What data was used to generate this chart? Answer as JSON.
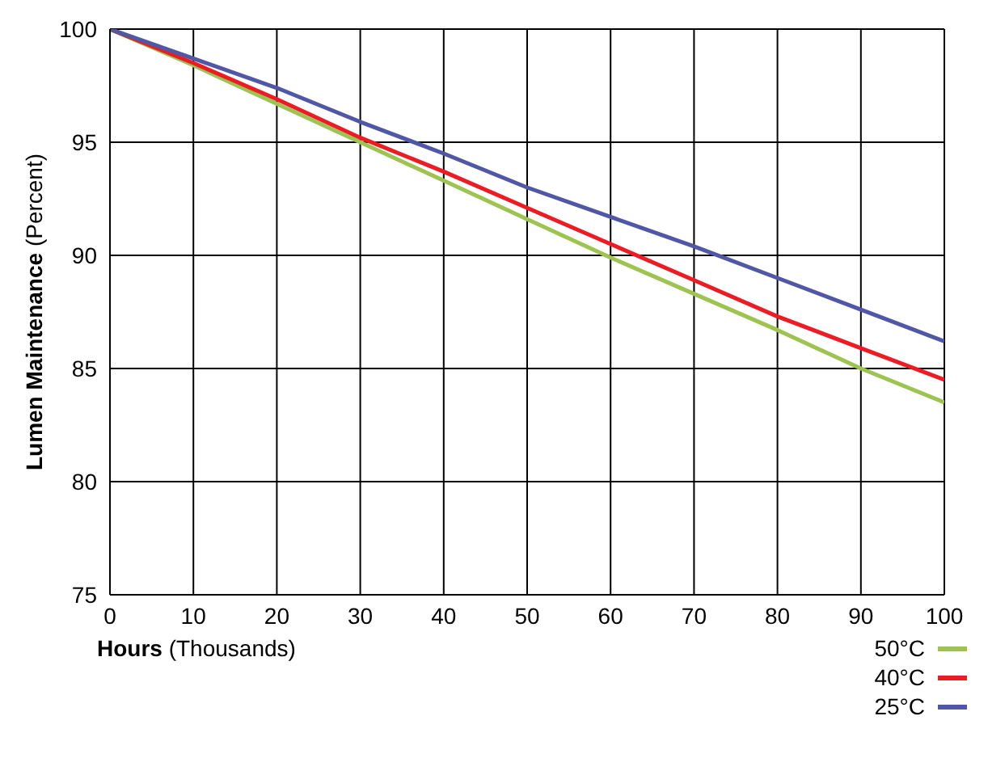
{
  "chart_data": {
    "type": "line",
    "xlabel": "Hours (Thousands)",
    "ylabel": "Lumen Maintenance (Percent)",
    "x": [
      0,
      10,
      20,
      30,
      40,
      50,
      60,
      70,
      80,
      90,
      100
    ],
    "series": [
      {
        "name": "50°C",
        "color": "#9dc350",
        "values": [
          100,
          98.4,
          96.7,
          95.0,
          93.3,
          91.6,
          89.9,
          88.3,
          86.7,
          85.0,
          83.5
        ]
      },
      {
        "name": "40°C",
        "color": "#ed1c24",
        "values": [
          100,
          98.5,
          96.9,
          95.2,
          93.7,
          92.1,
          90.5,
          88.9,
          87.3,
          85.9,
          84.5
        ]
      },
      {
        "name": "25°C",
        "color": "#5058a6",
        "values": [
          100,
          98.7,
          97.4,
          95.9,
          94.5,
          93.0,
          91.7,
          90.4,
          89.0,
          87.6,
          86.2
        ]
      }
    ],
    "xlim": [
      0,
      100
    ],
    "xticks": [
      0,
      10,
      20,
      30,
      40,
      50,
      60,
      70,
      80,
      90,
      100
    ],
    "ylim": [
      75,
      100
    ],
    "yticks": [
      75,
      80,
      85,
      90,
      95,
      100
    ],
    "grid": true,
    "legend": "bottom right",
    "marker": "none",
    "line_style": "solid"
  }
}
